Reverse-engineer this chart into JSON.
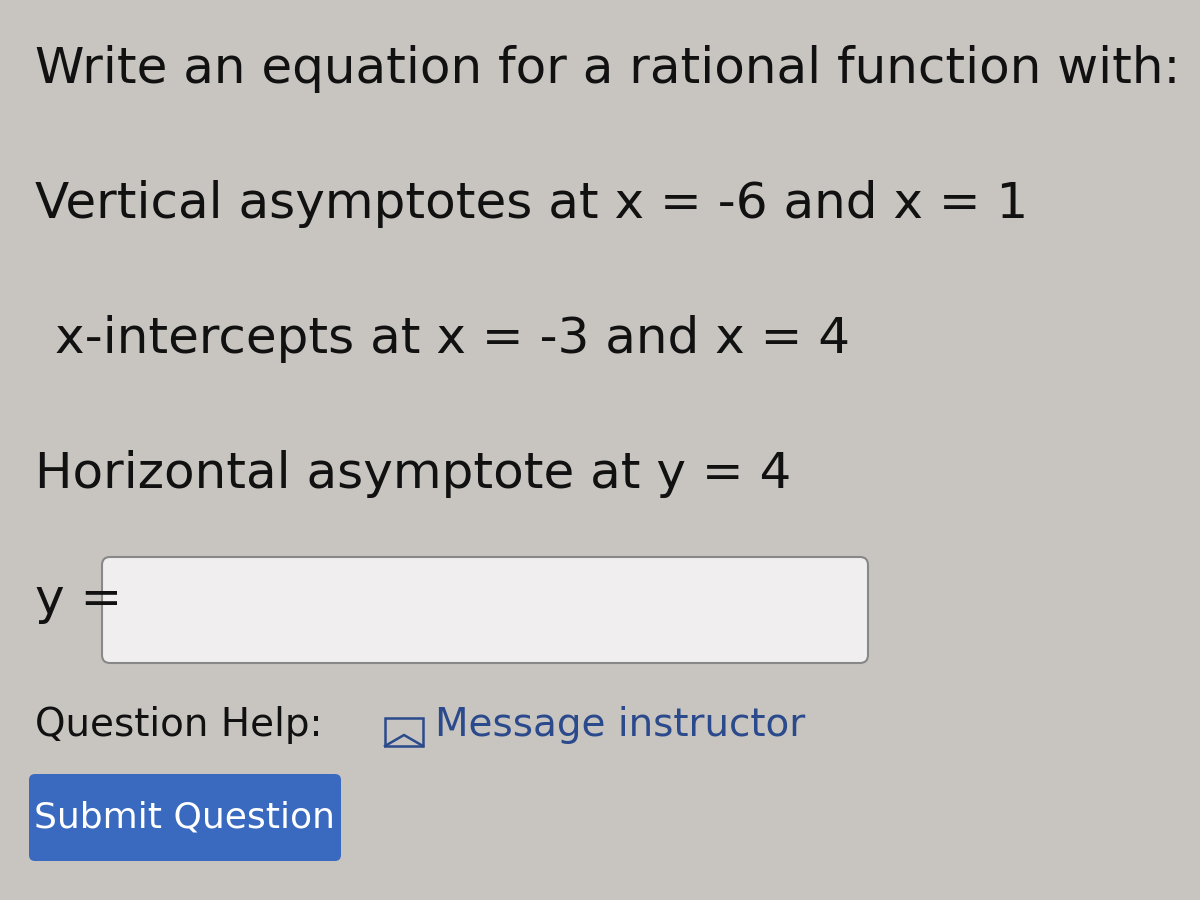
{
  "background_color": "#c8c4c0",
  "title_text": "Write an equation for a rational function with:",
  "line1": "Vertical asymptotes at x = -6 and x = 1",
  "line2": "x-intercepts at x = -3 and x = 4",
  "line3": "Horizontal asymptote at y = 4",
  "ylabel_text": "y =",
  "question_help_text": "Question Help:",
  "message_text": "Message instructor",
  "submit_text": "Submit Question",
  "submit_bg": "#3a6abf",
  "submit_text_color": "#ffffff",
  "text_color": "#111111",
  "blue_link_color": "#2a4a8c",
  "help_color": "#111111",
  "box_face": "#f0eeee",
  "box_edge": "#888888",
  "main_font_size": 36,
  "help_font_size": 28,
  "submit_font_size": 26
}
